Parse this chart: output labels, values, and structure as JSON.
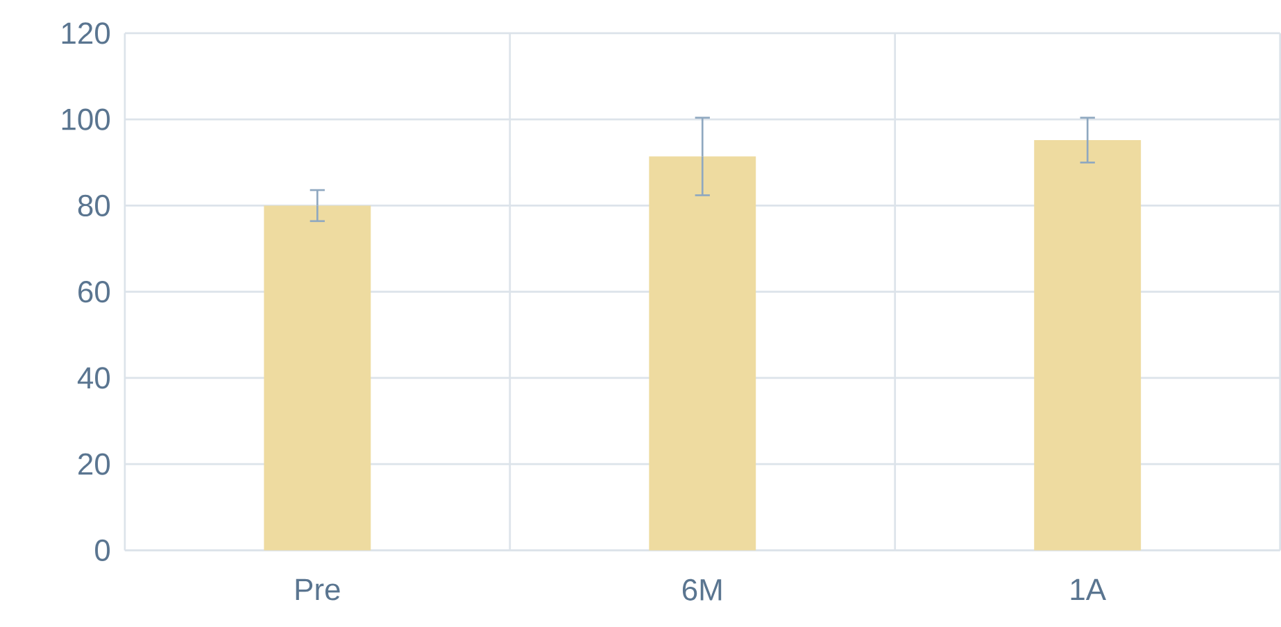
{
  "chart_data": {
    "type": "bar",
    "categories": [
      "Pre",
      "6M",
      "1A"
    ],
    "values": [
      80,
      91.4,
      95.2
    ],
    "errors": [
      3.6,
      9,
      5.2
    ],
    "color": "#eedba0",
    "ylim": [
      0,
      120
    ],
    "yticks": [
      0,
      20,
      40,
      60,
      80,
      100,
      120
    ],
    "grid": true
  }
}
